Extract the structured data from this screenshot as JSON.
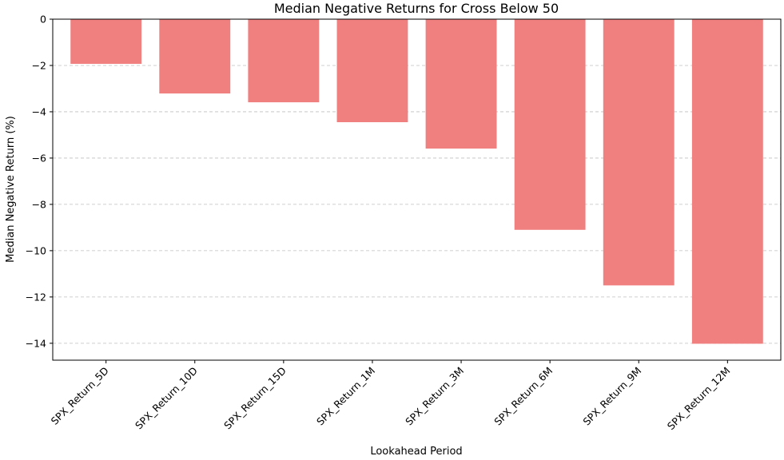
{
  "chart_data": {
    "type": "bar",
    "title": "Median Negative Returns for Cross Below 50",
    "xlabel": "Lookahead Period",
    "ylabel": "Median Negative Return (%)",
    "categories": [
      "SPX_Return_5D",
      "SPX_Return_10D",
      "SPX_Return_15D",
      "SPX_Return_1M",
      "SPX_Return_3M",
      "SPX_Return_6M",
      "SPX_Return_9M",
      "SPX_Return_12M"
    ],
    "values": [
      -1.93,
      -3.21,
      -3.59,
      -4.45,
      -5.59,
      -9.1,
      -11.5,
      -14.02
    ],
    "ylim": [
      -14.73,
      0
    ],
    "yticks": [
      0,
      -2,
      -4,
      -6,
      -8,
      -10,
      -12,
      -14
    ],
    "grid": "y, dashed",
    "bar_color": "#f08080"
  }
}
